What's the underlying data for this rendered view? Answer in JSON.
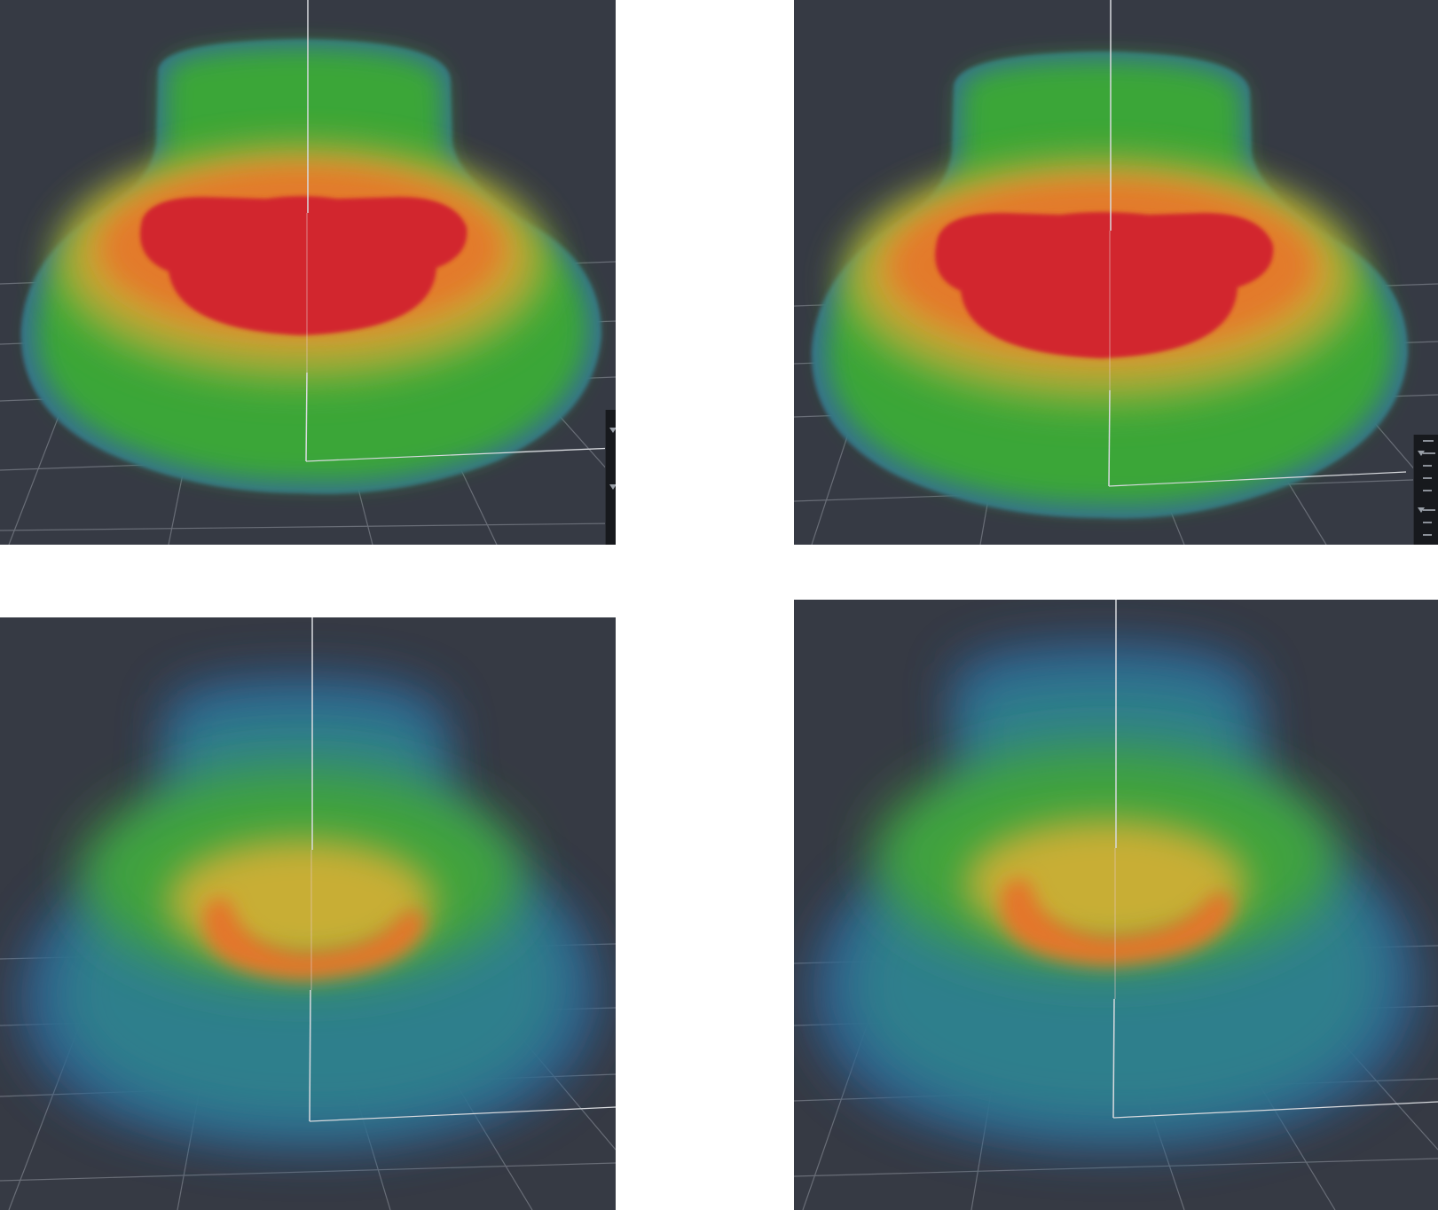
{
  "figure": {
    "panels": [
      {
        "id": "top-left",
        "colormap": "solid-jet",
        "palette": {
          "core": "#d2262f",
          "ring": "#cfa132",
          "body": "#3aa638",
          "edge": "#35708e"
        }
      },
      {
        "id": "top-right",
        "colormap": "solid-jet",
        "palette": {
          "core": "#d2262f",
          "ring": "#cfa132",
          "body": "#3aa638",
          "edge": "#35708e"
        }
      },
      {
        "id": "bottom-left",
        "colormap": "soft-jet",
        "palette": {
          "core": "#e4762a",
          "ring": "#c8ae35",
          "body": "#3fa33c",
          "edge": "#2f5d92"
        }
      },
      {
        "id": "bottom-right",
        "colormap": "soft-jet",
        "palette": {
          "core": "#e4762a",
          "ring": "#c8ae35",
          "body": "#3fa33c",
          "edge": "#2f5d92"
        }
      }
    ],
    "colors": {
      "viewport_bg": "#363a44",
      "grid_line": "#7a7f88",
      "axis_line": "#d8dade",
      "panel_bg": "#17191d"
    },
    "icons": [
      "vertical-axis-line",
      "ground-grid",
      "side-panel-icon"
    ]
  }
}
